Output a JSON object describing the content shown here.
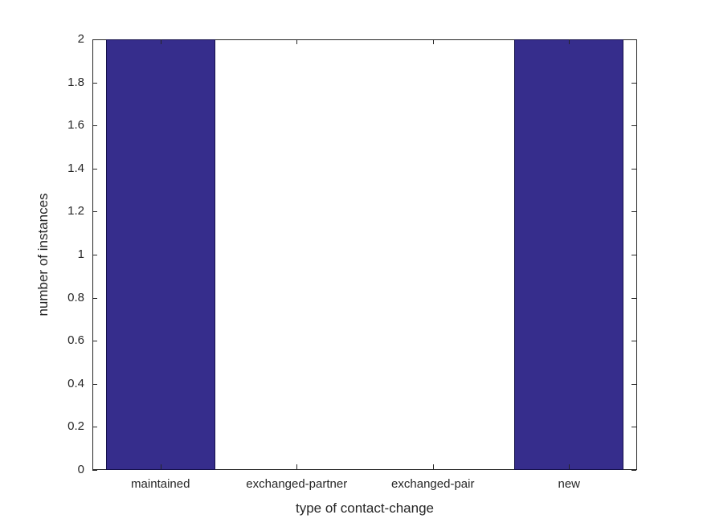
{
  "chart_data": {
    "type": "bar",
    "title": "",
    "categories": [
      "maintained",
      "exchanged-partner",
      "exchanged-pair",
      "new"
    ],
    "values": [
      2,
      0,
      0,
      2
    ],
    "xlabel": "type of contact-change",
    "ylabel": "number of instances",
    "ylim": [
      0,
      2
    ],
    "yticks": [
      {
        "value": 0,
        "label": "0"
      },
      {
        "value": 0.2,
        "label": "0.2"
      },
      {
        "value": 0.4,
        "label": "0.4"
      },
      {
        "value": 0.6,
        "label": "0.6"
      },
      {
        "value": 0.8,
        "label": "0.8"
      },
      {
        "value": 1,
        "label": "1"
      },
      {
        "value": 1.2,
        "label": "1.2"
      },
      {
        "value": 1.4,
        "label": "1.4"
      },
      {
        "value": 1.6,
        "label": "1.6"
      },
      {
        "value": 1.8,
        "label": "1.8"
      },
      {
        "value": 2,
        "label": "2"
      }
    ],
    "bar_width_fraction": 0.8,
    "legend": null,
    "grid": false,
    "colors": {
      "bar_fill": "#362D8C",
      "bar_edge": "#14104A",
      "axis": "#262626",
      "text": "#262626",
      "background": "#ffffff"
    }
  }
}
